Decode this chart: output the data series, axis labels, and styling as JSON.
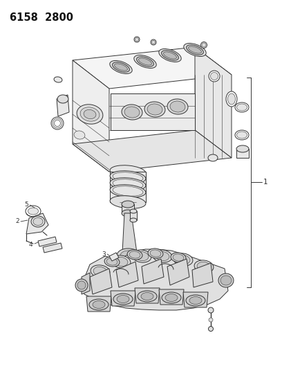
{
  "title": "6158  2800",
  "background_color": "#ffffff",
  "line_color": "#333333",
  "fig_width": 4.08,
  "fig_height": 5.33,
  "dpi": 100,
  "label_1": "1",
  "label_2": "2",
  "label_3": "3",
  "label_4": "4",
  "label_5": "5",
  "label_fontsize": 7.5,
  "title_fontsize": 10.5,
  "lw_main": 0.7,
  "lw_thin": 0.4
}
